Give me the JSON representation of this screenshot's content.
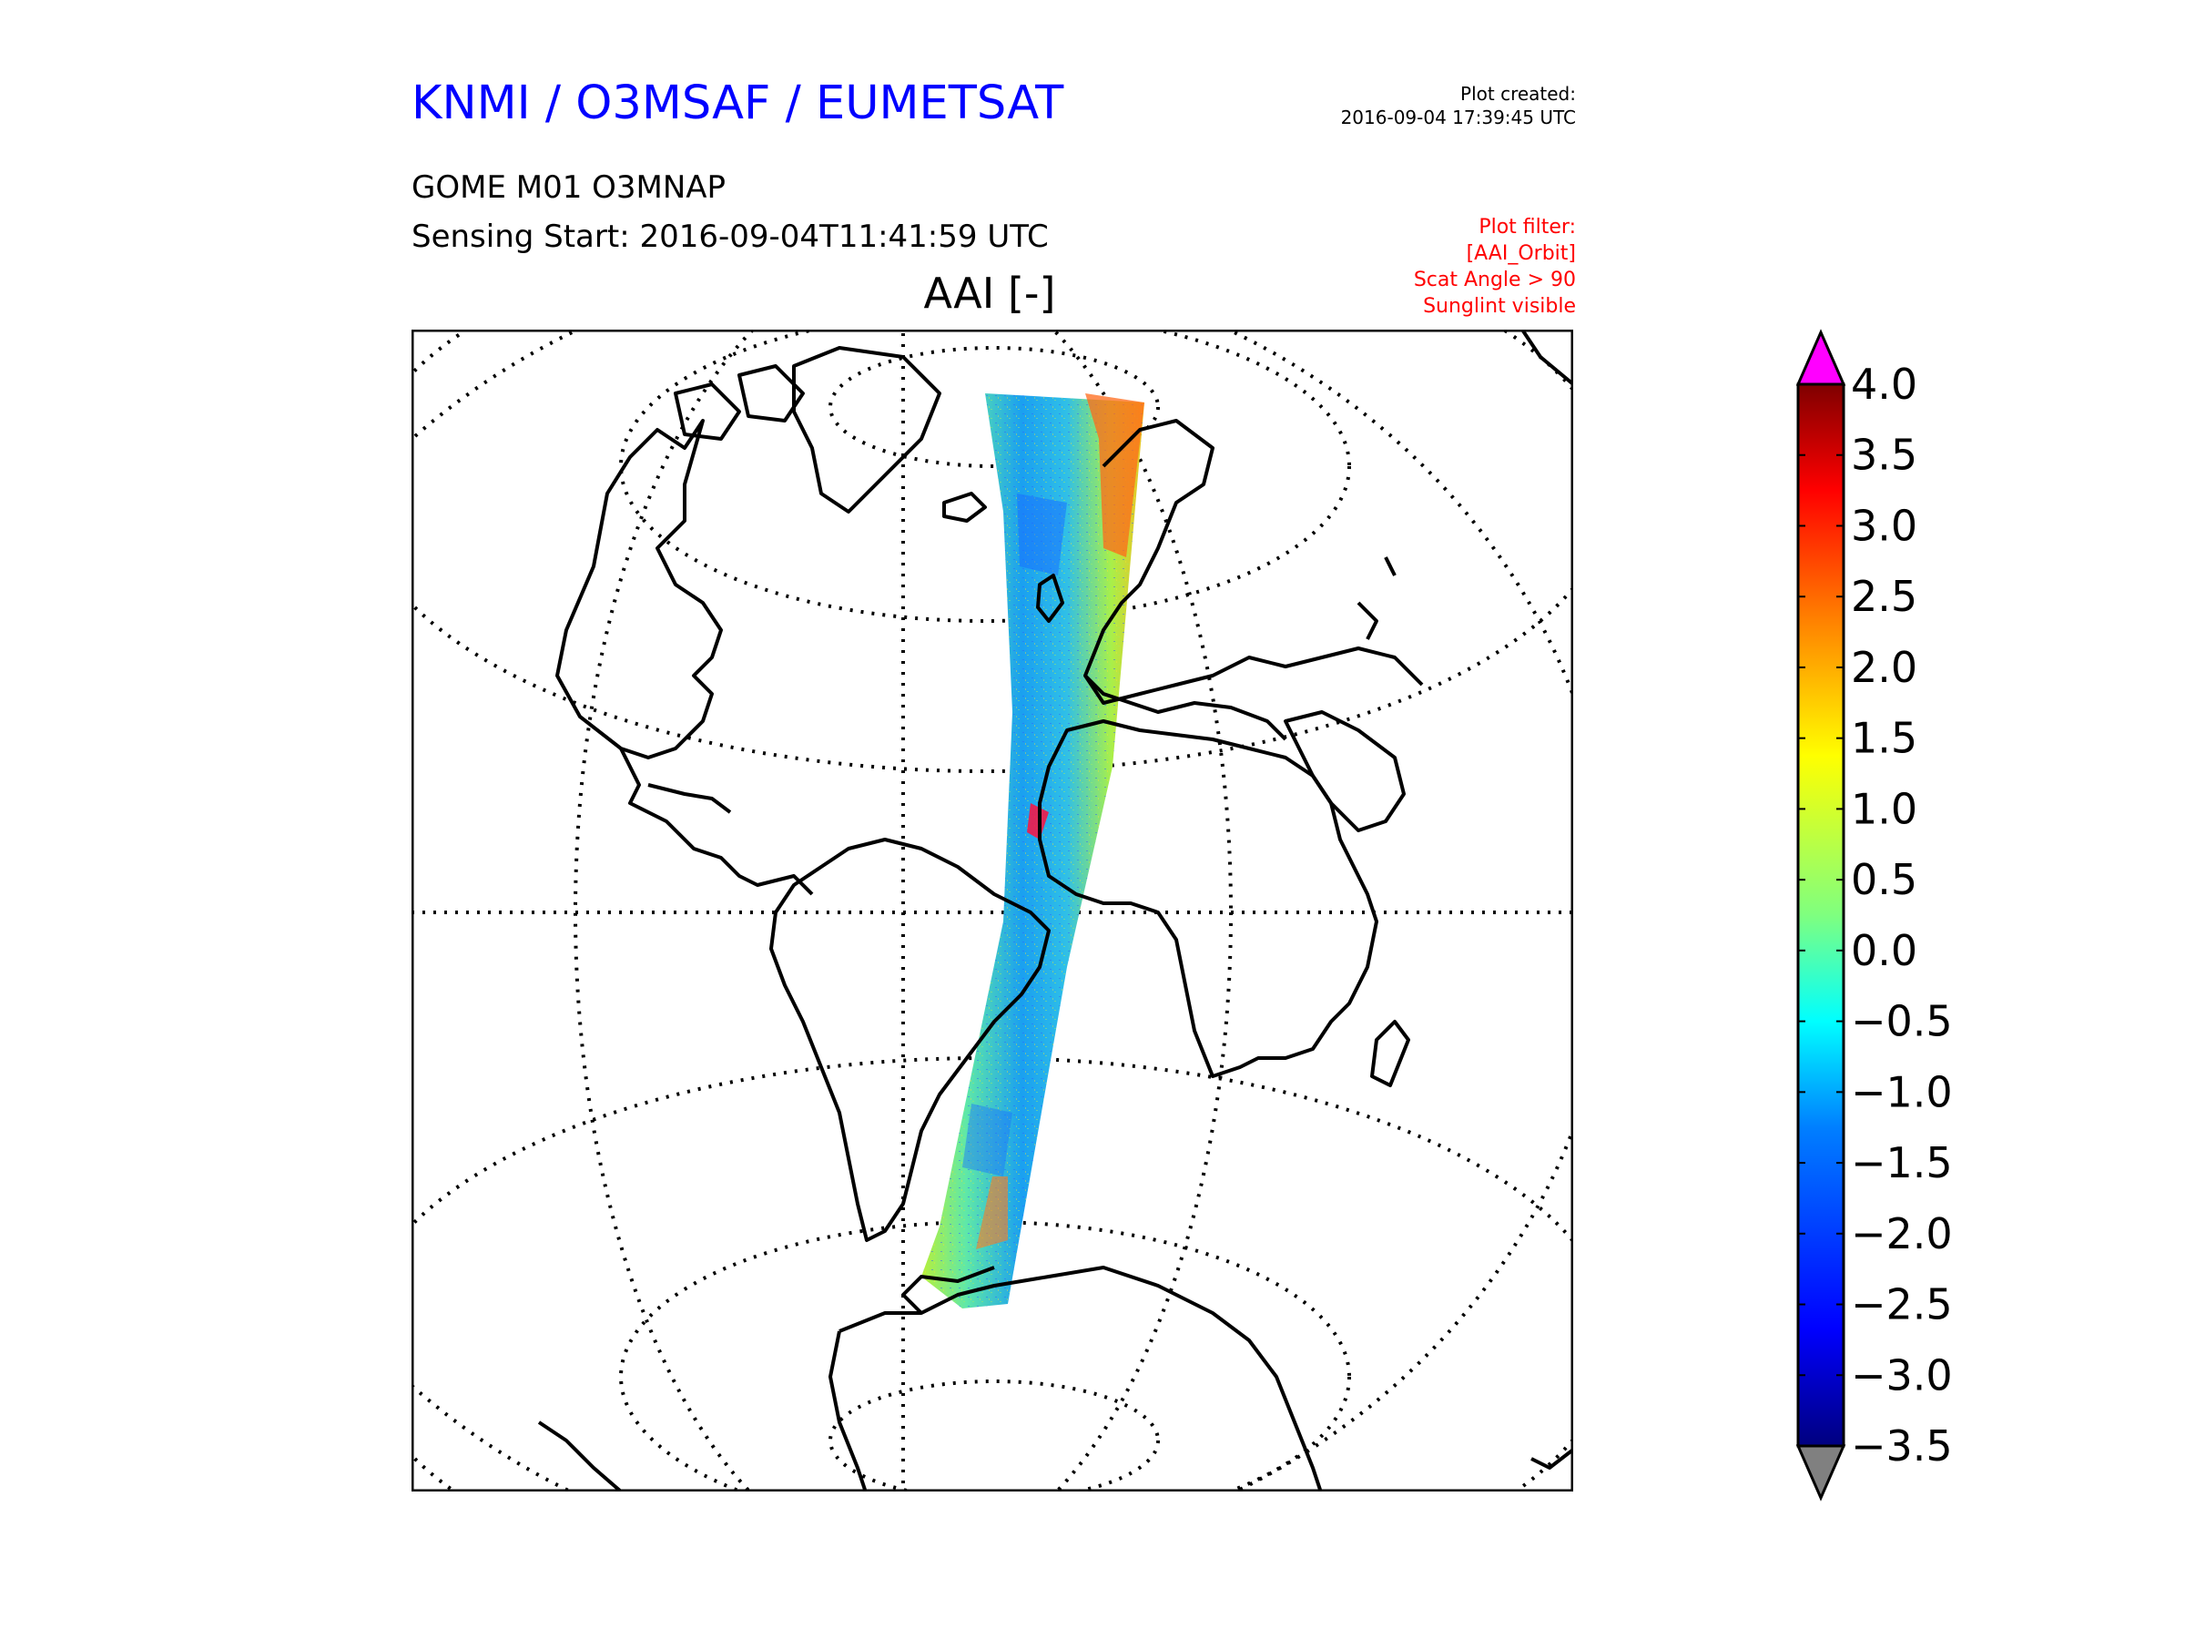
{
  "header": {
    "org_title": "KNMI / O3MSAF / EUMETSAT",
    "plot_created_label": "Plot created:",
    "plot_created_value": "2016-09-04 17:39:45 UTC",
    "product": "GOME M01 O3MNAP",
    "sensing_start": "Sensing Start: 2016-09-04T11:41:59 UTC",
    "filter_lines": [
      "Plot filter:",
      "[AAI_Orbit]",
      "Scat Angle > 90",
      "Sunglint visible"
    ]
  },
  "map": {
    "title": "AAI [-]",
    "projection": "orthographic",
    "graticule": "dotted",
    "swath": "GOME orbit swath from Arctic to Antarctic over the Atlantic"
  },
  "colorbar": {
    "ticks": [
      "4.0",
      "3.5",
      "3.0",
      "2.5",
      "2.0",
      "1.5",
      "1.0",
      "0.5",
      "0.0",
      "−0.5",
      "−1.0",
      "−1.5",
      "−2.0",
      "−2.5",
      "−3.0",
      "−3.5"
    ],
    "min": -3.5,
    "max": 4.0,
    "over_color": "#ff00ff",
    "under_color": "#808080",
    "colormap": [
      "#00007f",
      "#0000ff",
      "#007fff",
      "#00ffff",
      "#7fff7f",
      "#ffff00",
      "#ff7f00",
      "#ff0000",
      "#7f0000"
    ]
  }
}
